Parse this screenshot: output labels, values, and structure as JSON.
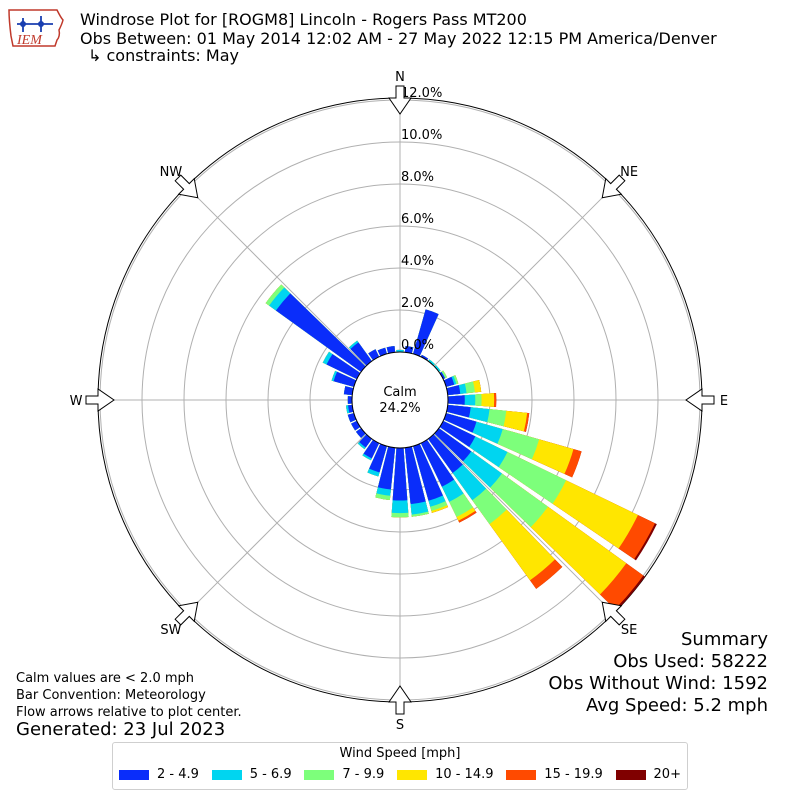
{
  "header": {
    "title": "Windrose Plot for [ROGM8] Lincoln - Rogers Pass MT200",
    "period": "Obs Between: 01 May 2014 12:02 AM - 27 May 2022 12:15 PM America/Denver",
    "constraints": "↳ constraints: May"
  },
  "logo": {
    "text": "IEM",
    "icon": "iowa-state-outline-icon"
  },
  "notes": {
    "calm_note": "Calm values are < 2.0 mph",
    "bar_convention": "Bar Convention: Meteorology",
    "flow_arrows": "Flow arrows relative to plot center.",
    "generated": "Generated: 23 Jul 2023"
  },
  "summary": {
    "heading": "Summary",
    "obs_used": "Obs Used: 58222",
    "obs_without_wind": "Obs Without Wind: 1592",
    "avg_speed": "Avg Speed: 5.2 mph"
  },
  "legend": {
    "title": "Wind Speed [mph]",
    "items": [
      {
        "label": "2 - 4.9",
        "color": "#0a2dfa"
      },
      {
        "label": "5 - 6.9",
        "color": "#00d5f0"
      },
      {
        "label": "7 - 9.9",
        "color": "#7dff7b"
      },
      {
        "label": "10 - 14.9",
        "color": "#ffe600"
      },
      {
        "label": "15 - 19.9",
        "color": "#ff4a00"
      },
      {
        "label": "20+",
        "color": "#800000"
      }
    ]
  },
  "chart_data": {
    "type": "windrose",
    "direction_labels": [
      "N",
      "NE",
      "E",
      "SE",
      "S",
      "SW",
      "W",
      "NW"
    ],
    "radial_ticks": [
      "0.0%",
      "2.0%",
      "4.0%",
      "6.0%",
      "8.0%",
      "10.0%",
      "12.0%"
    ],
    "radial_max_percent": 12.0,
    "calm_label": "Calm",
    "calm_value": "24.2%",
    "bar_convention": "meteorology",
    "grid": true,
    "series": [
      {
        "name": "2 - 4.9",
        "color": "#0a2dfa"
      },
      {
        "name": "5 - 6.9",
        "color": "#00d5f0"
      },
      {
        "name": "7 - 9.9",
        "color": "#7dff7b"
      },
      {
        "name": "10 - 14.9",
        "color": "#ffe600"
      },
      {
        "name": "15 - 19.9",
        "color": "#ff4a00"
      },
      {
        "name": "20+",
        "color": "#800000"
      }
    ],
    "direction_degrees": [
      0,
      10,
      20,
      30,
      40,
      50,
      60,
      70,
      80,
      90,
      100,
      110,
      120,
      130,
      140,
      150,
      160,
      170,
      180,
      190,
      200,
      210,
      220,
      230,
      240,
      250,
      260,
      270,
      280,
      290,
      300,
      310,
      320,
      330,
      340,
      350
    ],
    "cumulative_percent": [
      [
        0.0,
        0.1,
        0.1,
        0.1,
        0.1,
        0.1
      ],
      [
        0.3,
        0.3,
        0.3,
        0.3,
        0.3,
        0.3
      ],
      [
        2.2,
        2.2,
        2.2,
        2.2,
        2.2,
        2.2
      ],
      [
        0.1,
        0.1,
        0.1,
        0.1,
        0.1,
        0.1
      ],
      [
        0.0,
        0.1,
        0.1,
        0.1,
        0.1,
        0.1
      ],
      [
        0.0,
        0.1,
        0.1,
        0.1,
        0.1,
        0.1
      ],
      [
        0.1,
        0.1,
        0.2,
        0.2,
        0.2,
        0.2
      ],
      [
        0.4,
        0.5,
        0.6,
        0.6,
        0.6,
        0.6
      ],
      [
        0.6,
        0.9,
        1.3,
        1.6,
        1.6,
        1.6
      ],
      [
        0.8,
        1.3,
        1.6,
        2.2,
        2.3,
        2.3
      ],
      [
        1.1,
        2.0,
        2.8,
        3.8,
        3.9,
        3.9
      ],
      [
        1.5,
        2.8,
        4.6,
        6.3,
        6.7,
        6.7
      ],
      [
        1.7,
        3.4,
        6.5,
        10.3,
        11.2,
        11.3
      ],
      [
        1.9,
        3.7,
        6.4,
        11.0,
        12.0,
        12.1
      ],
      [
        2.0,
        3.6,
        5.0,
        8.3,
        8.8,
        8.8
      ],
      [
        2.3,
        3.1,
        3.9,
        4.1,
        4.2,
        4.2
      ],
      [
        2.7,
        3.0,
        3.2,
        3.3,
        3.3,
        3.3
      ],
      [
        2.7,
        3.2,
        3.3,
        3.3,
        3.3,
        3.3
      ],
      [
        2.5,
        3.1,
        3.3,
        3.3,
        3.3,
        3.3
      ],
      [
        2.0,
        2.3,
        2.5,
        2.5,
        2.5,
        2.5
      ],
      [
        1.3,
        1.5,
        1.5,
        1.5,
        1.5,
        1.5
      ],
      [
        0.8,
        0.9,
        0.9,
        0.9,
        0.9,
        0.9
      ],
      [
        0.5,
        0.6,
        0.6,
        0.6,
        0.6,
        0.6
      ],
      [
        0.3,
        0.3,
        0.3,
        0.3,
        0.3,
        0.3
      ],
      [
        0.3,
        0.3,
        0.3,
        0.3,
        0.3,
        0.3
      ],
      [
        0.3,
        0.3,
        0.3,
        0.3,
        0.3,
        0.3
      ],
      [
        0.2,
        0.3,
        0.3,
        0.3,
        0.3,
        0.3
      ],
      [
        0.2,
        0.2,
        0.2,
        0.2,
        0.2,
        0.2
      ],
      [
        0.4,
        0.4,
        0.4,
        0.4,
        0.4,
        0.4
      ],
      [
        1.0,
        1.1,
        1.1,
        1.1,
        1.1,
        1.1
      ],
      [
        1.6,
        1.8,
        1.8,
        1.8,
        1.8,
        1.8
      ],
      [
        5.0,
        5.4,
        5.6,
        5.6,
        5.6,
        5.6
      ],
      [
        1.1,
        1.2,
        1.2,
        1.2,
        1.2,
        1.2
      ],
      [
        0.4,
        0.4,
        0.4,
        0.4,
        0.4,
        0.4
      ],
      [
        0.3,
        0.3,
        0.3,
        0.3,
        0.3,
        0.3
      ],
      [
        0.3,
        0.3,
        0.3,
        0.3,
        0.3,
        0.3
      ]
    ]
  }
}
